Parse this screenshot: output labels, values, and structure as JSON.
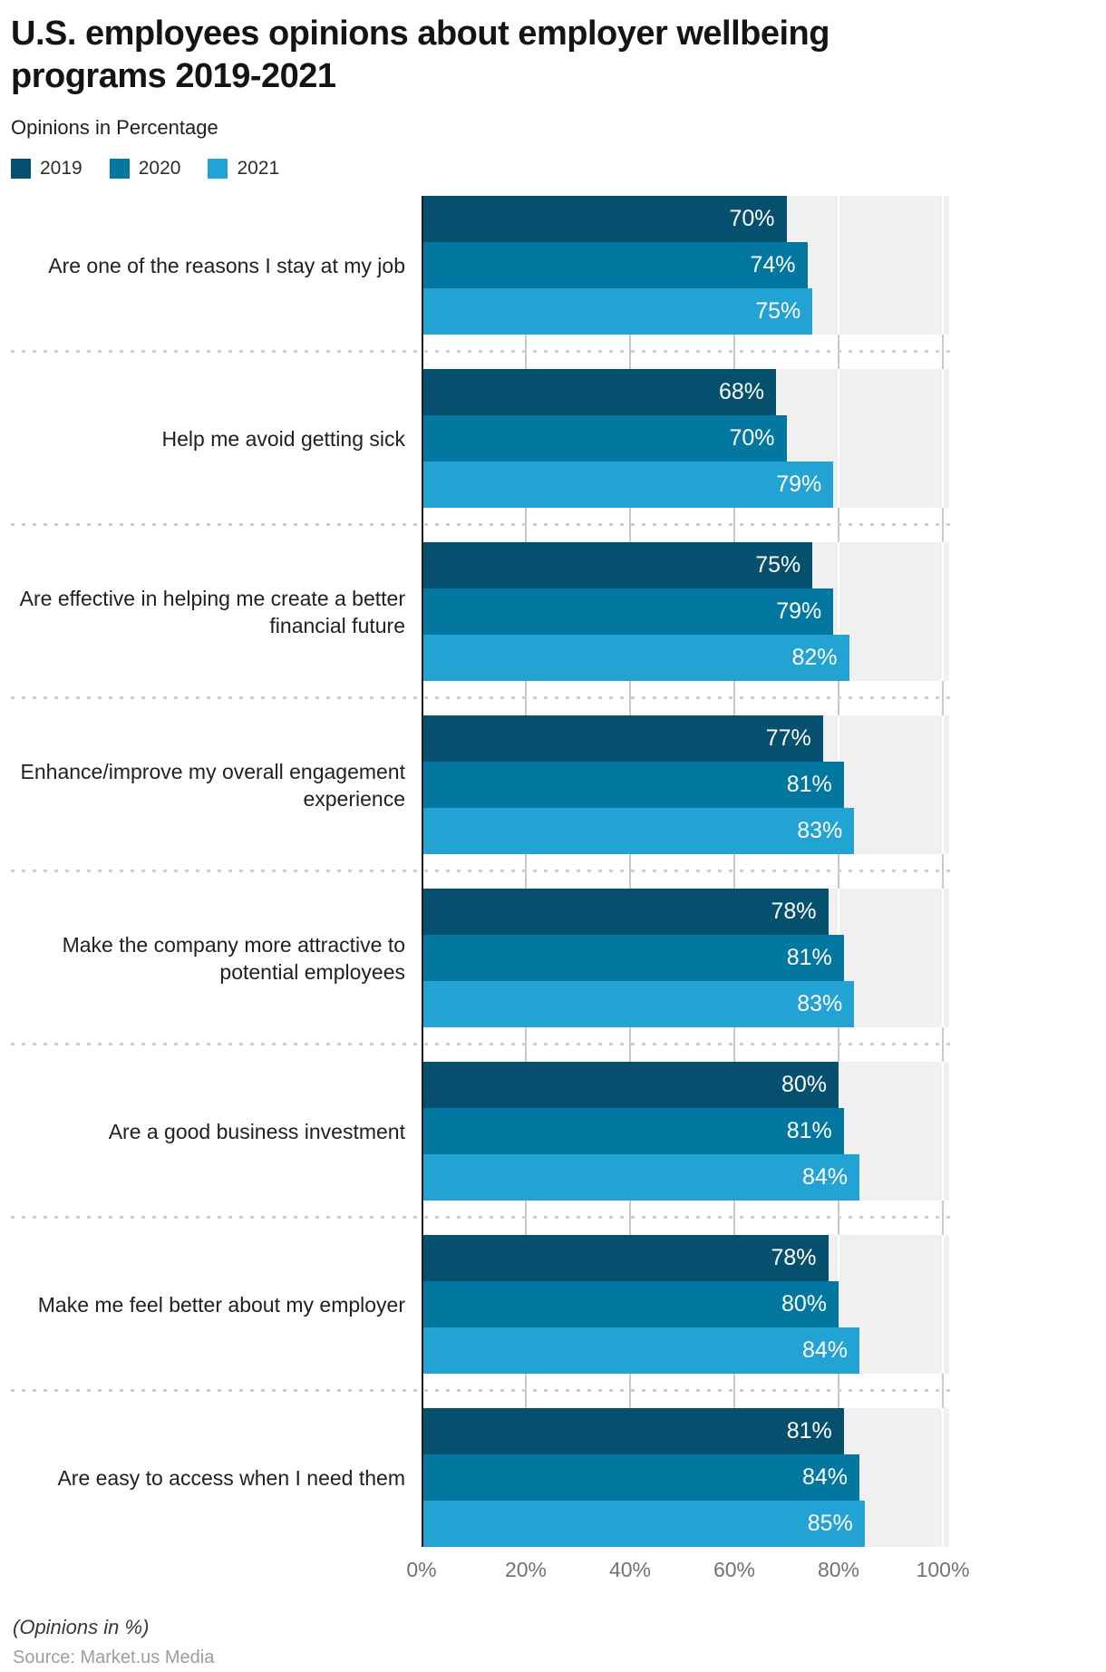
{
  "page": {
    "title": "U.S. employees opinions about employer wellbeing programs 2019-2021",
    "subtitle": "Opinions in Percentage"
  },
  "legend": {
    "items": [
      {
        "label": "2019",
        "color": "#05506F"
      },
      {
        "label": "2020",
        "color": "#0277A0"
      },
      {
        "label": "2021",
        "color": "#23A3D3"
      }
    ]
  },
  "chart_data": {
    "type": "bar",
    "orientation": "horizontal",
    "title": "U.S. employees opinions about employer wellbeing programs 2019-2021",
    "subtitle": "Opinions in Percentage",
    "categories": [
      "Are one of the reasons I stay at my job",
      "Help me avoid getting sick",
      "Are effective in helping me create a better financial future",
      "Enhance/improve my overall engagement experience",
      "Make the company more attractive to potential employees",
      "Are a good business investment",
      "Make me feel better about my employer",
      "Are easy to access when I need them"
    ],
    "series": [
      {
        "name": "2019",
        "color": "#05506F",
        "values": [
          70,
          68,
          75,
          77,
          78,
          80,
          78,
          81
        ],
        "labels": [
          "70%",
          "68%",
          "75%",
          "77%",
          "78%",
          "80%",
          "78%",
          "81%"
        ]
      },
      {
        "name": "2020",
        "color": "#0277A0",
        "values": [
          74,
          70,
          79,
          81,
          81,
          81,
          80,
          84
        ],
        "labels": [
          "74%",
          "70%",
          "79%",
          "81%",
          "81%",
          "81%",
          "80%",
          "84%"
        ]
      },
      {
        "name": "2021",
        "color": "#23A3D3",
        "values": [
          75,
          79,
          82,
          83,
          83,
          84,
          84,
          85
        ],
        "labels": [
          "75%",
          "79%",
          "82%",
          "83%",
          "83%",
          "84%",
          "84%",
          "85%"
        ]
      }
    ],
    "value_suffix": "%",
    "xlim": [
      0,
      100
    ],
    "x_ticks": [
      "0%",
      "20%",
      "40%",
      "60%",
      "80%",
      "100%"
    ],
    "grid": true,
    "legend_position": "top-left",
    "plot_background": "#F0F0F0"
  },
  "footer": {
    "note": "(Opinions in %)",
    "source": "Source: Market.us Media"
  }
}
